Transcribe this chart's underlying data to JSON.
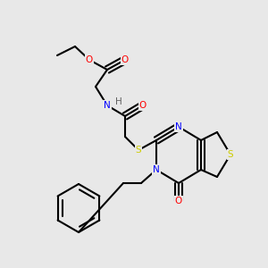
{
  "bg_color": "#e8e8e8",
  "atom_colors": {
    "O": "#ff0000",
    "N": "#0000ff",
    "S": "#cccc00",
    "H": "#606060",
    "C": "#000000"
  },
  "bond_color": "#000000",
  "bond_width": 1.5
}
